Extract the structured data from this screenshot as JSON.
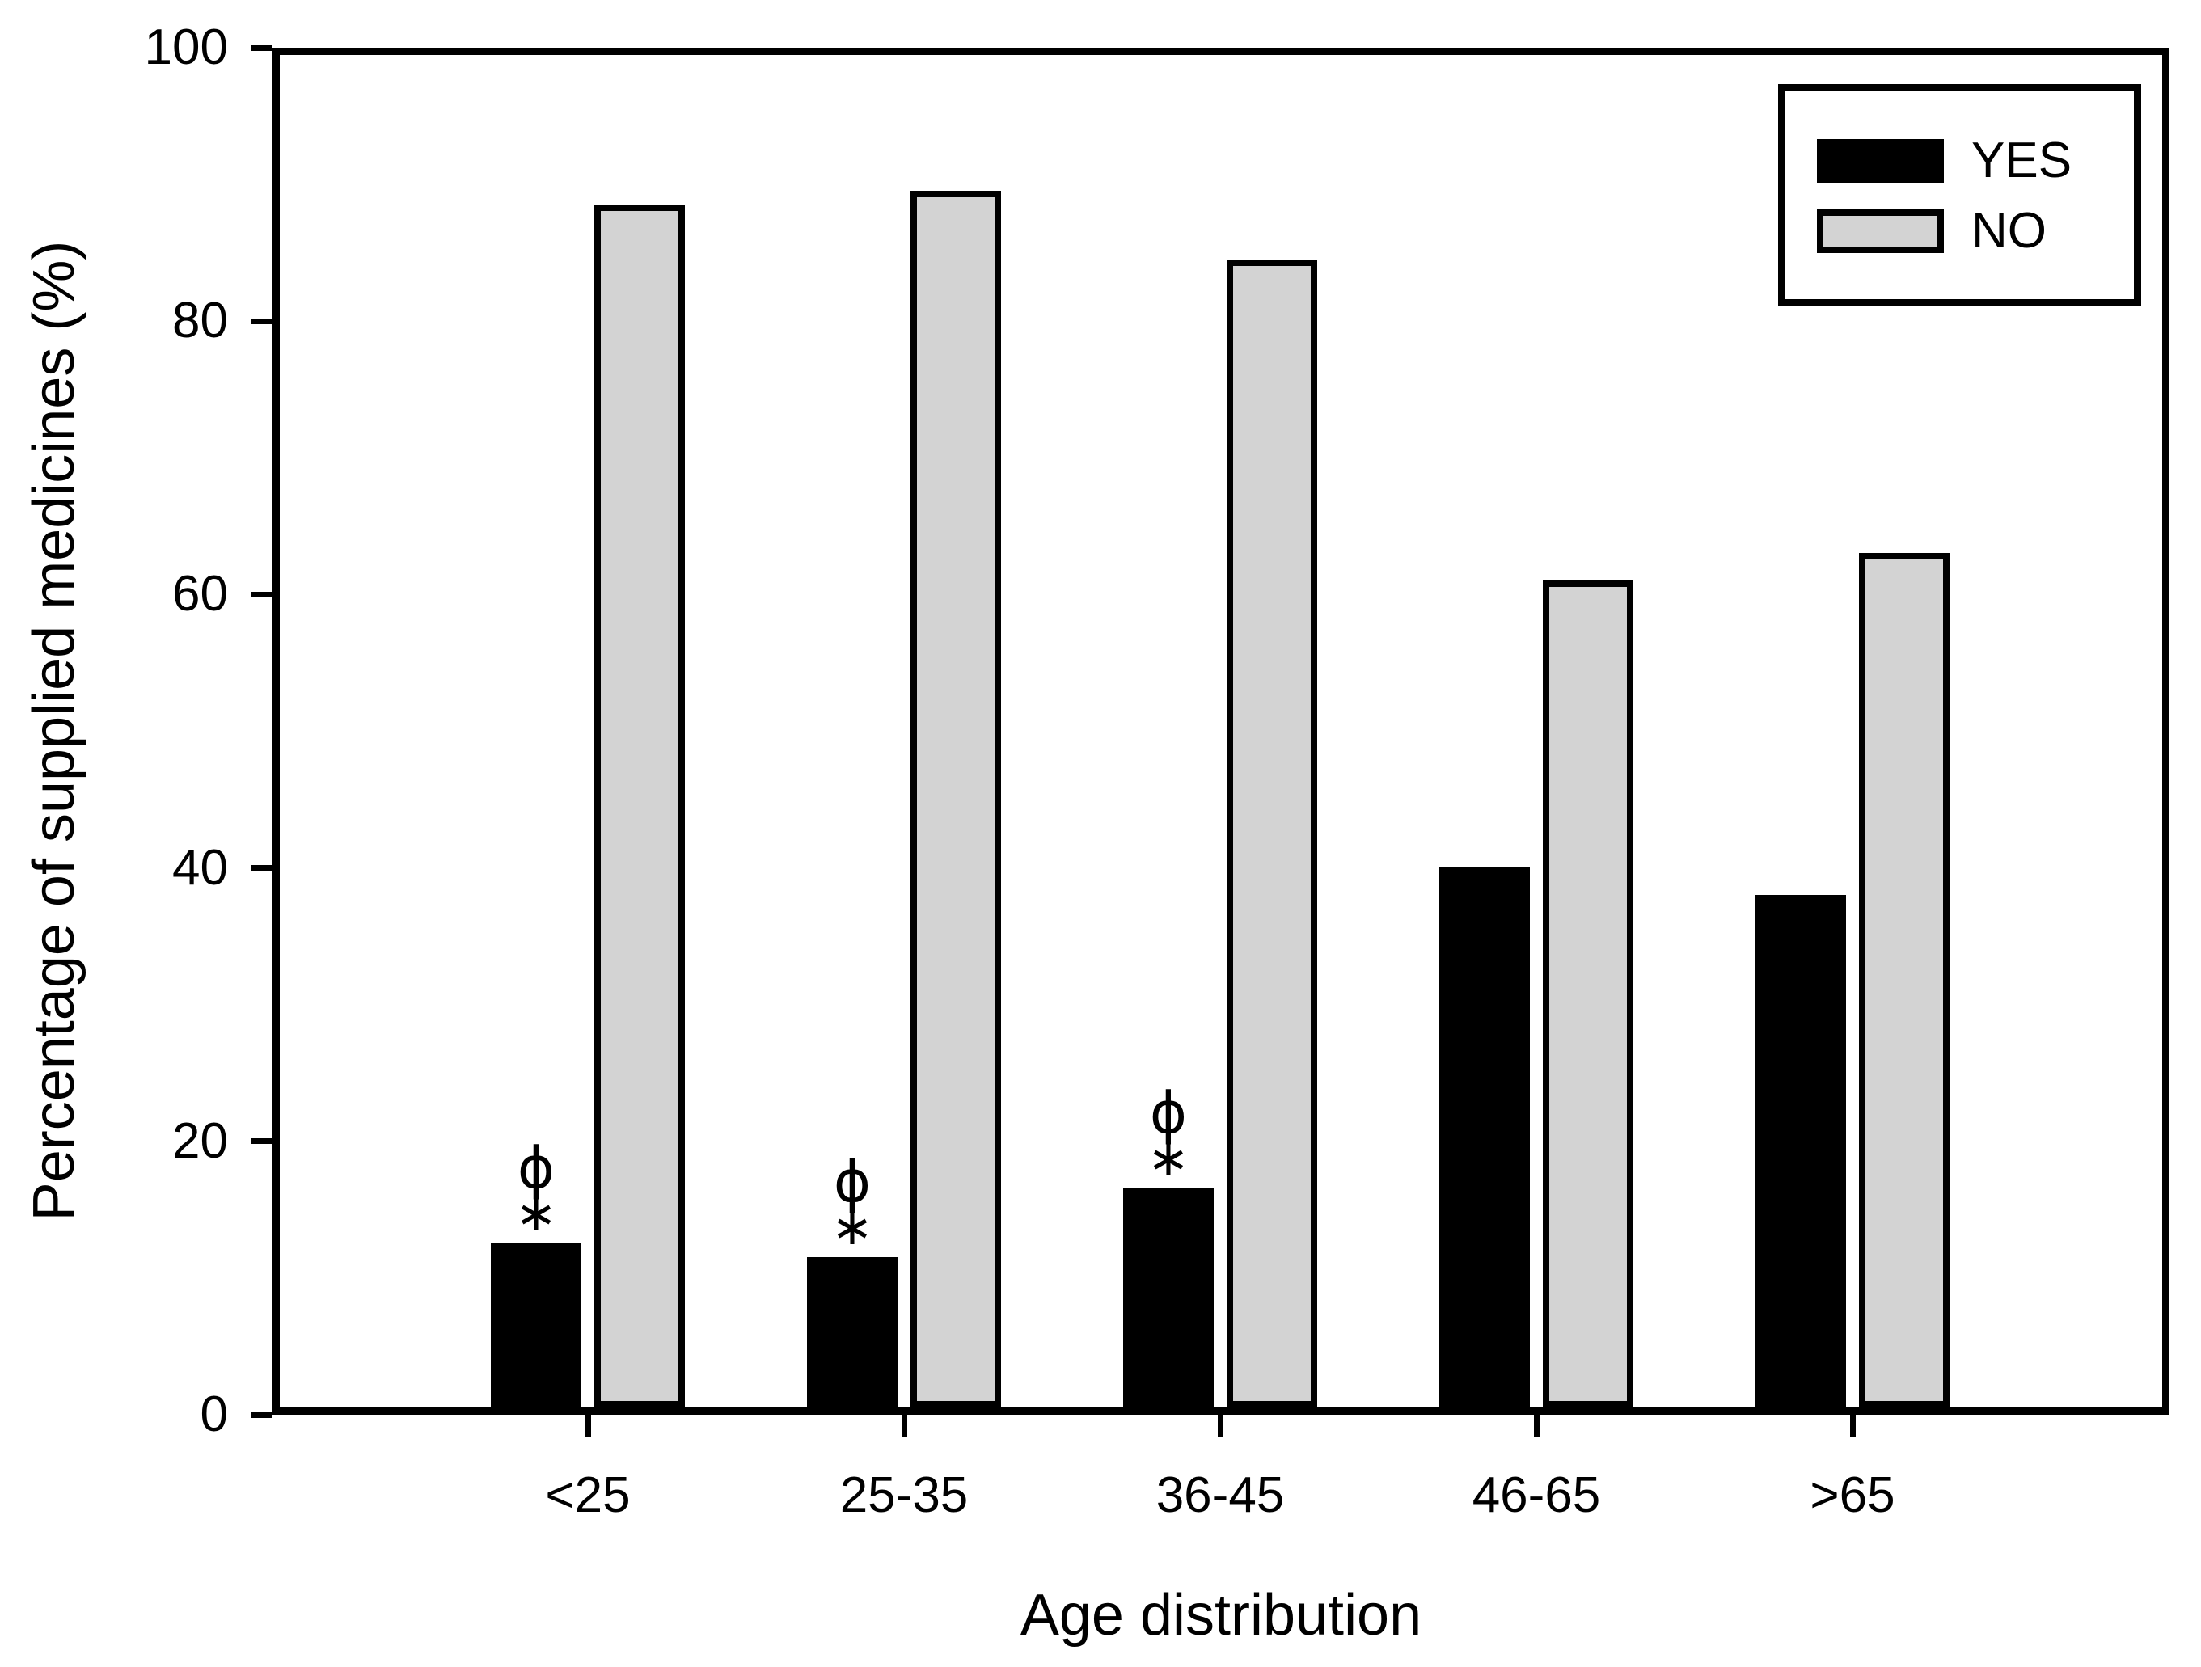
{
  "figure": {
    "background": "#ffffff",
    "axis_color": "#000000"
  },
  "chart_data": {
    "type": "bar",
    "title": "",
    "xlabel": "Age distribution",
    "ylabel": "Percentage of supplied medicines (%)",
    "categories": [
      "<25",
      "25-35",
      "36-45",
      "46-65",
      ">65"
    ],
    "series": [
      {
        "name": "YES",
        "color": "#000000",
        "values": [
          12,
          11,
          16,
          39.5,
          37.5
        ]
      },
      {
        "name": "NO",
        "color": "#d3d3d3",
        "values": [
          88,
          89,
          84,
          60.5,
          62.5
        ]
      }
    ],
    "ylim": [
      0,
      100
    ],
    "yticks": [
      0,
      20,
      40,
      60,
      80,
      100
    ],
    "grid": false,
    "legend_position": "upper-right",
    "annotations": [
      {
        "category": "<25",
        "series": "YES",
        "symbols": [
          "ϕ",
          "∗"
        ]
      },
      {
        "category": "25-35",
        "series": "YES",
        "symbols": [
          "ϕ",
          "∗"
        ]
      },
      {
        "category": "36-45",
        "series": "YES",
        "symbols": [
          "ϕ",
          "∗"
        ]
      }
    ]
  }
}
